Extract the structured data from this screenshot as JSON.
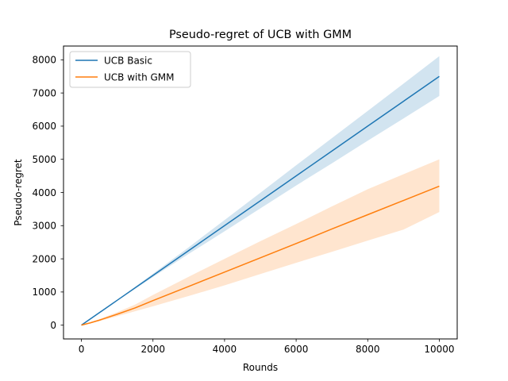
{
  "chart_data": {
    "type": "line",
    "title": "Pseudo-regret of UCB with GMM",
    "xlabel": "Rounds",
    "ylabel": "Pseudo-regret",
    "xlim": [
      -500,
      10500
    ],
    "ylim": [
      -415,
      8415
    ],
    "xticks": [
      0,
      2000,
      4000,
      6000,
      8000,
      10000
    ],
    "yticks": [
      0,
      1000,
      2000,
      3000,
      4000,
      5000,
      6000,
      7000,
      8000
    ],
    "xtick_labels": [
      "0",
      "2000",
      "4000",
      "6000",
      "8000",
      "10000"
    ],
    "ytick_labels": [
      "0",
      "1000",
      "2000",
      "3000",
      "4000",
      "5000",
      "6000",
      "7000",
      "8000"
    ],
    "grid": false,
    "legend_position": "upper-left",
    "series": [
      {
        "name": "UCB Basic",
        "color": "#1f77b4",
        "band_color": "#1f77b4",
        "x": [
          0,
          1000,
          2000,
          3000,
          4000,
          5000,
          6000,
          7000,
          8000,
          9000,
          10000
        ],
        "y": [
          0,
          750,
          1500,
          2250,
          3000,
          3750,
          4500,
          5250,
          6000,
          6750,
          7500
        ],
        "lower": [
          0,
          740,
          1450,
          2150,
          2830,
          3520,
          4210,
          4880,
          5560,
          6230,
          6910
        ],
        "upper": [
          0,
          760,
          1550,
          2350,
          3170,
          3990,
          4820,
          5640,
          6460,
          7280,
          8110
        ]
      },
      {
        "name": "UCB with GMM",
        "color": "#ff7f0e",
        "band_color": "#ff7f0e",
        "x": [
          0,
          250,
          500,
          1000,
          1500,
          2000,
          3000,
          4000,
          5000,
          6000,
          7000,
          8000,
          9000,
          10000
        ],
        "y": [
          0,
          70,
          150,
          330,
          520,
          740,
          1170,
          1600,
          2030,
          2460,
          2900,
          3330,
          3760,
          4190
        ],
        "lower": [
          0,
          60,
          120,
          270,
          420,
          570,
          880,
          1200,
          1540,
          1880,
          2210,
          2550,
          2880,
          3410
        ],
        "upper": [
          0,
          90,
          180,
          390,
          620,
          910,
          1460,
          2000,
          2530,
          3050,
          3580,
          4100,
          4550,
          5000
        ]
      }
    ]
  }
}
